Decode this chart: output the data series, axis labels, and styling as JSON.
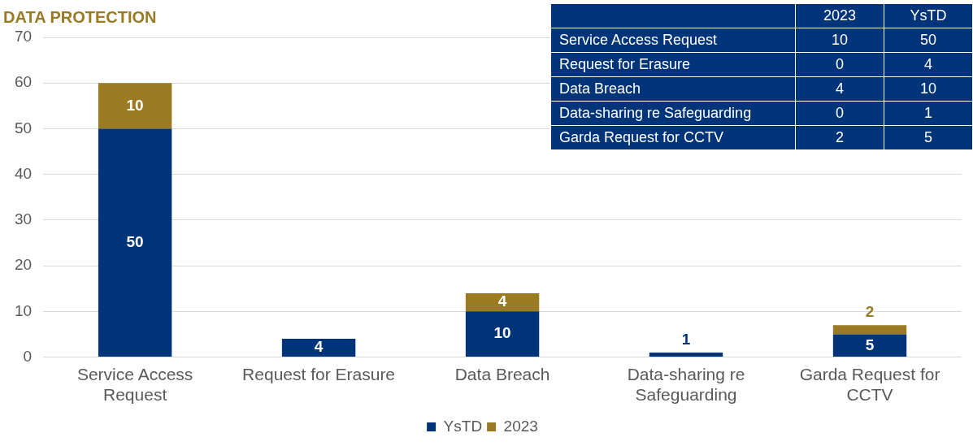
{
  "chart_data": [
    {
      "type": "bar",
      "title": "DATA PROTECTION",
      "categories": [
        "Service Access Request",
        "Request for Erasure",
        "Data Breach",
        "Data-sharing re Safeguarding",
        "Garda Request for CCTV"
      ],
      "series": [
        {
          "name": "YsTD",
          "color": "#003479",
          "values": [
            50,
            4,
            10,
            1,
            5
          ],
          "value_labels": [
            "50",
            "4",
            "10",
            "1",
            "5"
          ]
        },
        {
          "name": "2023",
          "color": "#9a7a22",
          "values": [
            10,
            0,
            4,
            0,
            2
          ],
          "value_labels": [
            "10",
            null,
            "4",
            null,
            "2"
          ]
        }
      ],
      "stacked": true,
      "ylim": [
        0,
        70
      ],
      "yticks": [
        0,
        10,
        20,
        30,
        40,
        50,
        60,
        70
      ],
      "grid": "y",
      "legend": "bottom"
    },
    {
      "type": "other",
      "categories": [
        "Service Access Request",
        "Request for Erasure",
        "Data Breach",
        "Data-sharing re Safeguarding",
        "Garda Request for CCTV"
      ],
      "series": [
        {
          "name": "2023",
          "values": [
            10,
            0,
            4,
            0,
            2
          ]
        },
        {
          "name": "YsTD",
          "values": [
            50,
            4,
            10,
            1,
            5
          ]
        }
      ],
      "data_labels": true
    }
  ]
}
